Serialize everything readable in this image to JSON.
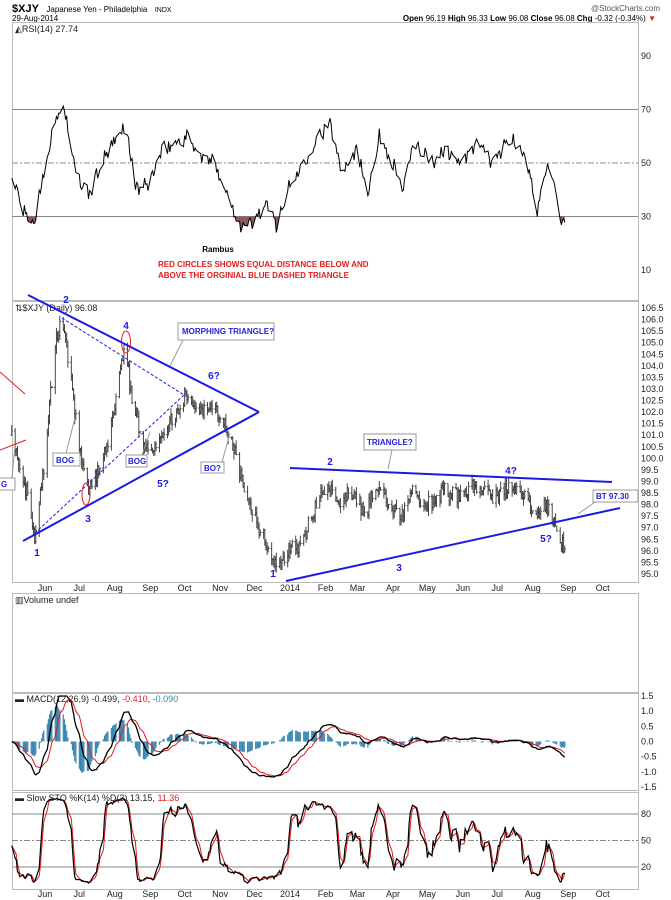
{
  "header": {
    "symbol": "$XJY",
    "name": "Japanese Yen - Philadelphia",
    "exchange": "INDX",
    "copyright": "@StockCharts.com",
    "date": "29-Aug-2014",
    "open_label": "Open",
    "open": "96.19",
    "high_label": "High",
    "high": "96.33",
    "low_label": "Low",
    "low": "96.08",
    "close_label": "Close",
    "close": "96.08",
    "chg_label": "Chg",
    "chg": "-0.32 (-0.34%)",
    "down_arrow": "▼"
  },
  "colors": {
    "rsi_fill": "#8b5a5a",
    "annotation_blue": "#1a1ae6",
    "circle_red": "#e41b1b",
    "macd_hist": "#3a87b0",
    "signal_red": "#e41b1b"
  },
  "annotations": {
    "author": "Rambus",
    "red_note_line1": "RED CIRCLES SHOWS EQUAL DISTANCE BELOW AND",
    "red_note_line2": "ABOVE THE ORGINIAL BLUE DASHED TRIANGLE",
    "morphing": "MORPHING TRIANGLE?",
    "triangle": "TRIANGLE?",
    "bog": "BOG",
    "bog_partial": "G",
    "bo": "BO?",
    "bt": "BT 97.30",
    "waves1": [
      "1",
      "2",
      "3",
      "4",
      "5?",
      "6?"
    ],
    "waves2": [
      "1",
      "2",
      "3",
      "4?",
      "5?"
    ]
  },
  "chart_data": [
    {
      "type": "line",
      "title": "RSI(14) 27.74",
      "ylim": [
        0,
        100
      ],
      "yticks": [
        "90",
        "70",
        "50",
        "30",
        "10"
      ],
      "reference_lines": [
        70,
        50,
        30
      ],
      "x": [
        "2013-05-03",
        "2013-05-15",
        "2013-05-23",
        "2013-06-01",
        "2013-06-12",
        "2013-06-18",
        "2013-06-28",
        "2013-07-10",
        "2013-07-20",
        "2013-08-05",
        "2013-08-10",
        "2013-08-20",
        "2013-08-30",
        "2013-09-12",
        "2013-09-25",
        "2013-10-05",
        "2013-10-15",
        "2013-10-28",
        "2013-11-10",
        "2013-11-20",
        "2013-12-01",
        "2013-12-10",
        "2013-12-20",
        "2013-12-30",
        "2014-01-10",
        "2014-01-25",
        "2014-02-05",
        "2014-02-15",
        "2014-02-28",
        "2014-03-10",
        "2014-03-20",
        "2014-04-01",
        "2014-04-10",
        "2014-04-20",
        "2014-05-05",
        "2014-05-15",
        "2014-06-01",
        "2014-06-15",
        "2014-06-25",
        "2014-07-05",
        "2014-07-15",
        "2014-07-28",
        "2014-08-05",
        "2014-08-14",
        "2014-08-22",
        "2014-08-26",
        "2014-08-29"
      ],
      "values": [
        45,
        30,
        28,
        50,
        68,
        71,
        45,
        38,
        50,
        60,
        65,
        40,
        42,
        55,
        58,
        60,
        52,
        50,
        35,
        26,
        28,
        35,
        27,
        40,
        48,
        60,
        64,
        48,
        55,
        40,
        60,
        50,
        40,
        58,
        50,
        55,
        50,
        58,
        50,
        55,
        60,
        48,
        32,
        52,
        35,
        25,
        27.74
      ]
    },
    {
      "type": "bar",
      "subtype": "ohlc",
      "title": "$XJY (Daily) 96.08",
      "ylim": [
        95.0,
        106.5
      ],
      "yticks": [
        "106.5",
        "106.0",
        "105.5",
        "105.0",
        "104.5",
        "104.0",
        "103.5",
        "103.0",
        "102.5",
        "102.0",
        "101.5",
        "101.0",
        "100.5",
        "100.0",
        "99.5",
        "99.0",
        "98.5",
        "98.0",
        "97.5",
        "97.0",
        "96.5",
        "96.0",
        "95.5",
        "95.0"
      ],
      "x": [
        "2013-05-03",
        "2013-05-12",
        "2013-05-23",
        "2013-06-01",
        "2013-06-10",
        "2013-06-16",
        "2013-06-22",
        "2013-07-01",
        "2013-07-10",
        "2013-07-18",
        "2013-07-25",
        "2013-08-05",
        "2013-08-10",
        "2013-08-16",
        "2013-08-28",
        "2013-09-10",
        "2013-09-22",
        "2013-10-02",
        "2013-10-15",
        "2013-10-28",
        "2013-11-08",
        "2013-11-18",
        "2013-11-28",
        "2013-12-08",
        "2013-12-20",
        "2013-12-30",
        "2014-01-10",
        "2014-01-22",
        "2014-02-02",
        "2014-02-12",
        "2014-02-25",
        "2014-03-08",
        "2014-03-15",
        "2014-03-28",
        "2014-04-08",
        "2014-04-18",
        "2014-05-01",
        "2014-05-15",
        "2014-06-01",
        "2014-06-12",
        "2014-06-25",
        "2014-07-05",
        "2014-07-18",
        "2014-07-28",
        "2014-08-05",
        "2014-08-12",
        "2014-08-20",
        "2014-08-24",
        "2014-08-29"
      ],
      "close": [
        101.0,
        99.5,
        96.7,
        100.0,
        104.9,
        106.2,
        104.0,
        100.5,
        98.5,
        99.5,
        100.5,
        103.5,
        105.0,
        102.5,
        100.4,
        100.8,
        101.8,
        102.8,
        102.2,
        102.0,
        101.2,
        99.5,
        97.8,
        96.7,
        95.2,
        96.0,
        96.2,
        97.8,
        99.0,
        98.2,
        98.6,
        97.5,
        98.7,
        98.2,
        97.4,
        98.5,
        98.0,
        98.6,
        98.2,
        98.9,
        98.3,
        98.6,
        98.8,
        98.1,
        97.3,
        98.0,
        97.3,
        96.5,
        96.08
      ]
    },
    {
      "type": "bar",
      "title": "Volume undef"
    },
    {
      "type": "line",
      "title": "MACD(12,26,9)",
      "values_printed": [
        "-0.499",
        "-0.410",
        "-0.090"
      ],
      "ylim": [
        -1.5,
        1.5
      ],
      "yticks": [
        "1.5",
        "1.0",
        "0.5",
        "0.0",
        "-0.5",
        "-1.0",
        "-1.5"
      ]
    },
    {
      "type": "line",
      "title": "Slow STO %K(14) %D(3)",
      "values_printed": [
        "13.15",
        "11.36"
      ],
      "ylim": [
        0,
        100
      ],
      "yticks": [
        "80",
        "50",
        "20"
      ],
      "reference_lines": [
        80,
        50,
        20
      ]
    }
  ],
  "x_axis": {
    "months": [
      "Jun",
      "Jul",
      "Aug",
      "Sep",
      "Oct",
      "Nov",
      "Dec",
      "2014",
      "Feb",
      "Mar",
      "Apr",
      "May",
      "Jun",
      "Jul",
      "Aug",
      "Sep",
      "Oct"
    ],
    "month_dates": [
      "2013-06-01",
      "2013-07-01",
      "2013-08-01",
      "2013-09-01",
      "2013-10-01",
      "2013-11-01",
      "2013-12-01",
      "2014-01-01",
      "2014-02-01",
      "2014-03-01",
      "2014-04-01",
      "2014-05-01",
      "2014-06-01",
      "2014-07-01",
      "2014-08-01",
      "2014-09-01",
      "2014-10-01"
    ]
  }
}
